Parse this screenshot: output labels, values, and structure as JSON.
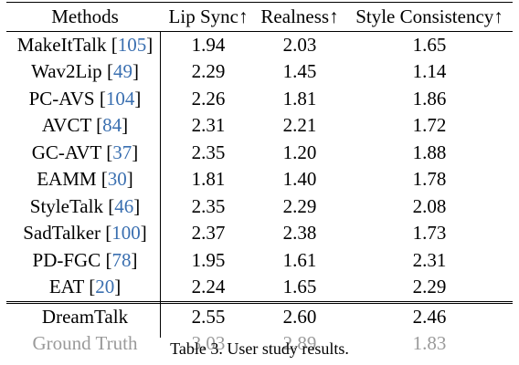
{
  "table": {
    "headers": [
      "Methods",
      "Lip Sync↑",
      "Realness↑",
      "Style Consistency↑"
    ],
    "rows": [
      {
        "method": "MakeItTalk",
        "ref": "105",
        "lip_sync": "1.94",
        "realness": "2.03",
        "style": "1.65"
      },
      {
        "method": "Wav2Lip",
        "ref": "49",
        "lip_sync": "2.29",
        "realness": "1.45",
        "style": "1.14"
      },
      {
        "method": "PC-AVS",
        "ref": "104",
        "lip_sync": "2.26",
        "realness": "1.81",
        "style": "1.86"
      },
      {
        "method": "AVCT",
        "ref": "84",
        "lip_sync": "2.31",
        "realness": "2.21",
        "style": "1.72"
      },
      {
        "method": "GC-AVT",
        "ref": "37",
        "lip_sync": "2.35",
        "realness": "1.20",
        "style": "1.88"
      },
      {
        "method": "EAMM",
        "ref": "30",
        "lip_sync": "1.81",
        "realness": "1.40",
        "style": "1.78"
      },
      {
        "method": "StyleTalk",
        "ref": "46",
        "lip_sync": "2.35",
        "realness": "2.29",
        "style": "2.08"
      },
      {
        "method": "SadTalker",
        "ref": "100",
        "lip_sync": "2.37",
        "realness": "2.38",
        "style": "1.73"
      },
      {
        "method": "PD-FGC",
        "ref": "78",
        "lip_sync": "1.95",
        "realness": "1.61",
        "style": "2.31"
      },
      {
        "method": "EAT",
        "ref": "20",
        "lip_sync": "2.24",
        "realness": "1.65",
        "style": "2.29"
      }
    ],
    "ours": {
      "method": "DreamTalk",
      "lip_sync": "2.55",
      "realness": "2.60",
      "style": "2.46"
    },
    "ground_truth": {
      "method": "Ground Truth",
      "lip_sync": "3.03",
      "realness": "2.89",
      "style": "1.83"
    }
  },
  "caption": "Table 3. User study results.",
  "colors": {
    "citation": "#3a6fb0",
    "ground_truth": "#9a9a9a",
    "text": "#000000"
  }
}
